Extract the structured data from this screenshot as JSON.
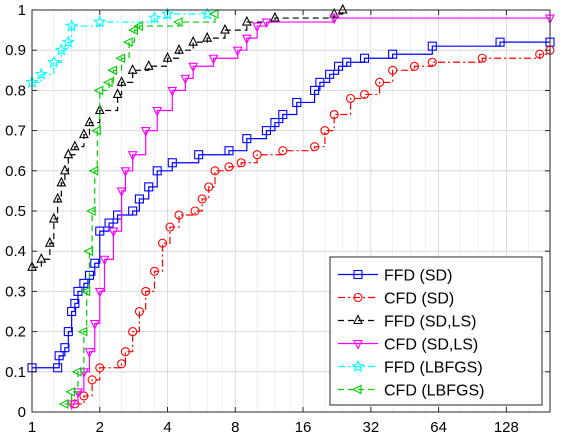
{
  "chart_data": {
    "type": "line",
    "step": true,
    "title": "",
    "xlabel": "",
    "ylabel": "",
    "x_scale": "log2",
    "xlim": [
      1,
      200
    ],
    "ylim": [
      0,
      1
    ],
    "x_ticks": [
      1,
      2,
      4,
      8,
      16,
      32,
      64,
      128
    ],
    "x_tick_labels": [
      "1",
      "2",
      "4",
      "8",
      "16",
      "32",
      "64",
      "128"
    ],
    "y_ticks": [
      0,
      0.1,
      0.2,
      0.3,
      0.4,
      0.5,
      0.6,
      0.7,
      0.8,
      0.9,
      1
    ],
    "y_tick_labels": [
      "0",
      "0.1",
      "0.2",
      "0.3",
      "0.4",
      "0.5",
      "0.6",
      "0.7",
      "0.8",
      "0.9",
      "1"
    ],
    "grid": true,
    "legend_position": "bottom-right",
    "series": [
      {
        "name": "FFD (SD)",
        "color": "#0000ff",
        "line_style": "solid",
        "marker": "square",
        "points": [
          [
            1,
            0.11
          ],
          [
            1.3,
            0.11
          ],
          [
            1.32,
            0.14
          ],
          [
            1.4,
            0.16
          ],
          [
            1.45,
            0.2
          ],
          [
            1.5,
            0.25
          ],
          [
            1.55,
            0.27
          ],
          [
            1.6,
            0.3
          ],
          [
            1.7,
            0.32
          ],
          [
            1.8,
            0.34
          ],
          [
            1.9,
            0.37
          ],
          [
            2.0,
            0.45
          ],
          [
            2.2,
            0.47
          ],
          [
            2.4,
            0.49
          ],
          [
            2.8,
            0.5
          ],
          [
            3.0,
            0.53
          ],
          [
            3.3,
            0.56
          ],
          [
            3.6,
            0.6
          ],
          [
            4.2,
            0.62
          ],
          [
            5.5,
            0.64
          ],
          [
            7.5,
            0.65
          ],
          [
            9,
            0.68
          ],
          [
            11,
            0.7
          ],
          [
            12,
            0.72
          ],
          [
            13,
            0.74
          ],
          [
            15,
            0.77
          ],
          [
            18,
            0.8
          ],
          [
            19,
            0.82
          ],
          [
            21,
            0.84
          ],
          [
            23,
            0.86
          ],
          [
            25,
            0.87
          ],
          [
            30,
            0.88
          ],
          [
            40,
            0.89
          ],
          [
            60,
            0.91
          ],
          [
            120,
            0.92
          ],
          [
            200,
            0.92
          ]
        ]
      },
      {
        "name": "CFD (SD)",
        "color": "#ff0000",
        "line_style": "dashdot",
        "marker": "circle",
        "points": [
          [
            1.55,
            0.02
          ],
          [
            1.7,
            0.04
          ],
          [
            1.85,
            0.08
          ],
          [
            2.0,
            0.11
          ],
          [
            2.5,
            0.12
          ],
          [
            2.6,
            0.15
          ],
          [
            2.8,
            0.2
          ],
          [
            3.0,
            0.25
          ],
          [
            3.2,
            0.3
          ],
          [
            3.5,
            0.35
          ],
          [
            3.8,
            0.42
          ],
          [
            4.1,
            0.46
          ],
          [
            4.5,
            0.49
          ],
          [
            5.3,
            0.5
          ],
          [
            5.7,
            0.53
          ],
          [
            6.1,
            0.56
          ],
          [
            6.5,
            0.6
          ],
          [
            7.5,
            0.61
          ],
          [
            8.5,
            0.62
          ],
          [
            10,
            0.64
          ],
          [
            13,
            0.65
          ],
          [
            18,
            0.66
          ],
          [
            20,
            0.7
          ],
          [
            22,
            0.74
          ],
          [
            26,
            0.78
          ],
          [
            30,
            0.79
          ],
          [
            35,
            0.82
          ],
          [
            40,
            0.85
          ],
          [
            50,
            0.86
          ],
          [
            60,
            0.87
          ],
          [
            100,
            0.88
          ],
          [
            180,
            0.89
          ],
          [
            200,
            0.9
          ]
        ]
      },
      {
        "name": "FFD (SD,LS)",
        "color": "#000000",
        "line_style": "dashed",
        "marker": "triangle-up",
        "points": [
          [
            1,
            0.36
          ],
          [
            1.1,
            0.38
          ],
          [
            1.2,
            0.42
          ],
          [
            1.25,
            0.48
          ],
          [
            1.3,
            0.53
          ],
          [
            1.35,
            0.57
          ],
          [
            1.4,
            0.6
          ],
          [
            1.45,
            0.64
          ],
          [
            1.55,
            0.66
          ],
          [
            1.7,
            0.69
          ],
          [
            1.8,
            0.72
          ],
          [
            2.0,
            0.75
          ],
          [
            2.4,
            0.79
          ],
          [
            2.5,
            0.82
          ],
          [
            2.8,
            0.85
          ],
          [
            3.3,
            0.86
          ],
          [
            4.0,
            0.88
          ],
          [
            4.5,
            0.9
          ],
          [
            5.2,
            0.92
          ],
          [
            6.0,
            0.93
          ],
          [
            7.2,
            0.95
          ],
          [
            9.0,
            0.97
          ],
          [
            12,
            0.98
          ],
          [
            22,
            0.99
          ],
          [
            24,
            1.0
          ]
        ]
      },
      {
        "name": "CFD (SD,LS)",
        "color": "#ff00ff",
        "line_style": "solid",
        "marker": "triangle-down",
        "points": [
          [
            1.5,
            0.02
          ],
          [
            1.6,
            0.05
          ],
          [
            1.7,
            0.1
          ],
          [
            1.8,
            0.15
          ],
          [
            1.9,
            0.22
          ],
          [
            2.0,
            0.3
          ],
          [
            2.1,
            0.38
          ],
          [
            2.3,
            0.45
          ],
          [
            2.5,
            0.55
          ],
          [
            2.6,
            0.6
          ],
          [
            2.8,
            0.64
          ],
          [
            3.2,
            0.7
          ],
          [
            3.6,
            0.75
          ],
          [
            4.2,
            0.8
          ],
          [
            4.8,
            0.83
          ],
          [
            5.2,
            0.86
          ],
          [
            6.4,
            0.88
          ],
          [
            8.2,
            0.9
          ],
          [
            9,
            0.93
          ],
          [
            10,
            0.96
          ],
          [
            11,
            0.97
          ],
          [
            22,
            0.98
          ],
          [
            200,
            0.98
          ]
        ]
      },
      {
        "name": "FFD (LBFGS)",
        "color": "#00ffff",
        "line_style": "dashdot",
        "marker": "star",
        "points": [
          [
            1,
            0.82
          ],
          [
            1.1,
            0.84
          ],
          [
            1.25,
            0.87
          ],
          [
            1.35,
            0.9
          ],
          [
            1.45,
            0.92
          ],
          [
            1.5,
            0.96
          ],
          [
            2,
            0.97
          ],
          [
            3.5,
            0.98
          ],
          [
            4,
            0.99
          ],
          [
            6,
            0.99
          ]
        ]
      },
      {
        "name": "CFD (LBFGS)",
        "color": "#00cc00",
        "line_style": "dashed",
        "marker": "triangle-left",
        "points": [
          [
            1.4,
            0.02
          ],
          [
            1.5,
            0.05
          ],
          [
            1.6,
            0.1
          ],
          [
            1.7,
            0.2
          ],
          [
            1.75,
            0.3
          ],
          [
            1.8,
            0.4
          ],
          [
            1.85,
            0.5
          ],
          [
            1.9,
            0.6
          ],
          [
            1.95,
            0.7
          ],
          [
            2.0,
            0.8
          ],
          [
            2.2,
            0.82
          ],
          [
            2.3,
            0.85
          ],
          [
            2.5,
            0.88
          ],
          [
            2.7,
            0.92
          ],
          [
            2.85,
            0.95
          ],
          [
            3.0,
            0.96
          ],
          [
            4.5,
            0.97
          ],
          [
            6.5,
            0.99
          ]
        ]
      }
    ]
  }
}
